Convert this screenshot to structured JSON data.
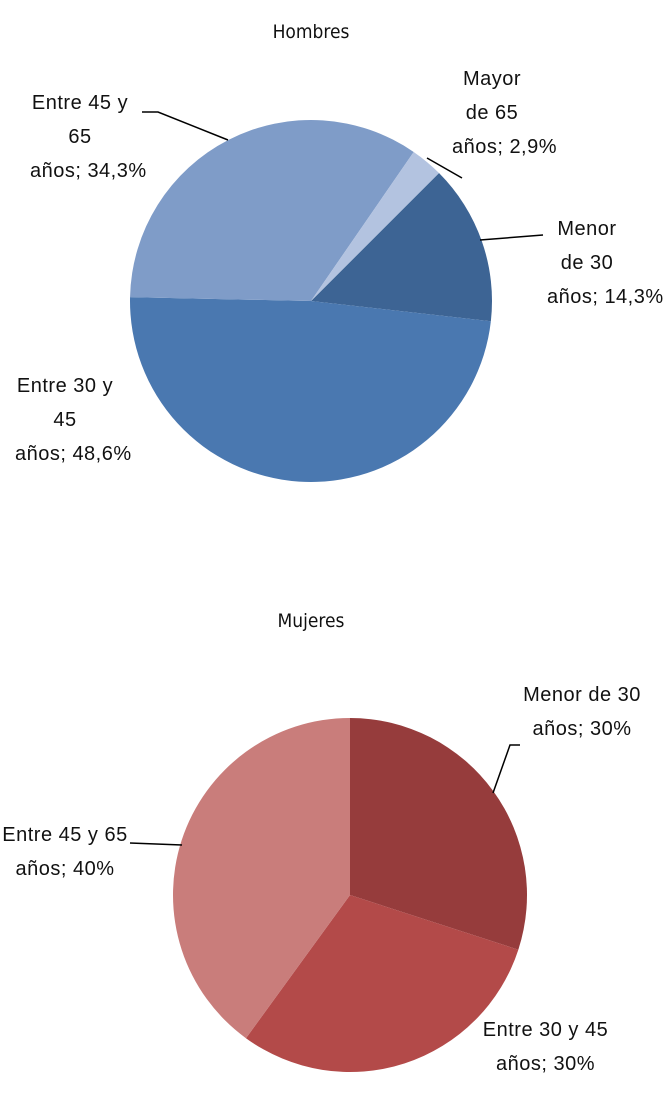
{
  "chart_data": [
    {
      "type": "pie",
      "title": "Hombres",
      "categories": [
        "Menor de 30 años;",
        "Entre 30 y 45 años;",
        "Entre 45 y 65 años;",
        "Mayor de 65 años;"
      ],
      "values": [
        14.3,
        48.6,
        34.3,
        2.9
      ],
      "value_labels": [
        "14,3%",
        "48,6%",
        "34,3%",
        "2,9%"
      ],
      "colors": [
        "#3d6494",
        "#4a78b0",
        "#7f9cc8",
        "#b3c3e0"
      ]
    },
    {
      "type": "pie",
      "title": "Mujeres",
      "categories": [
        "Menor de 30 años;",
        "Entre 30 y 45 años;",
        "Entre 45 y 65 años;"
      ],
      "values": [
        30,
        30,
        40
      ],
      "value_labels": [
        "30%",
        "30%",
        "40%"
      ],
      "colors": [
        "#963c3c",
        "#b34a49",
        "#c97d7b"
      ]
    }
  ]
}
